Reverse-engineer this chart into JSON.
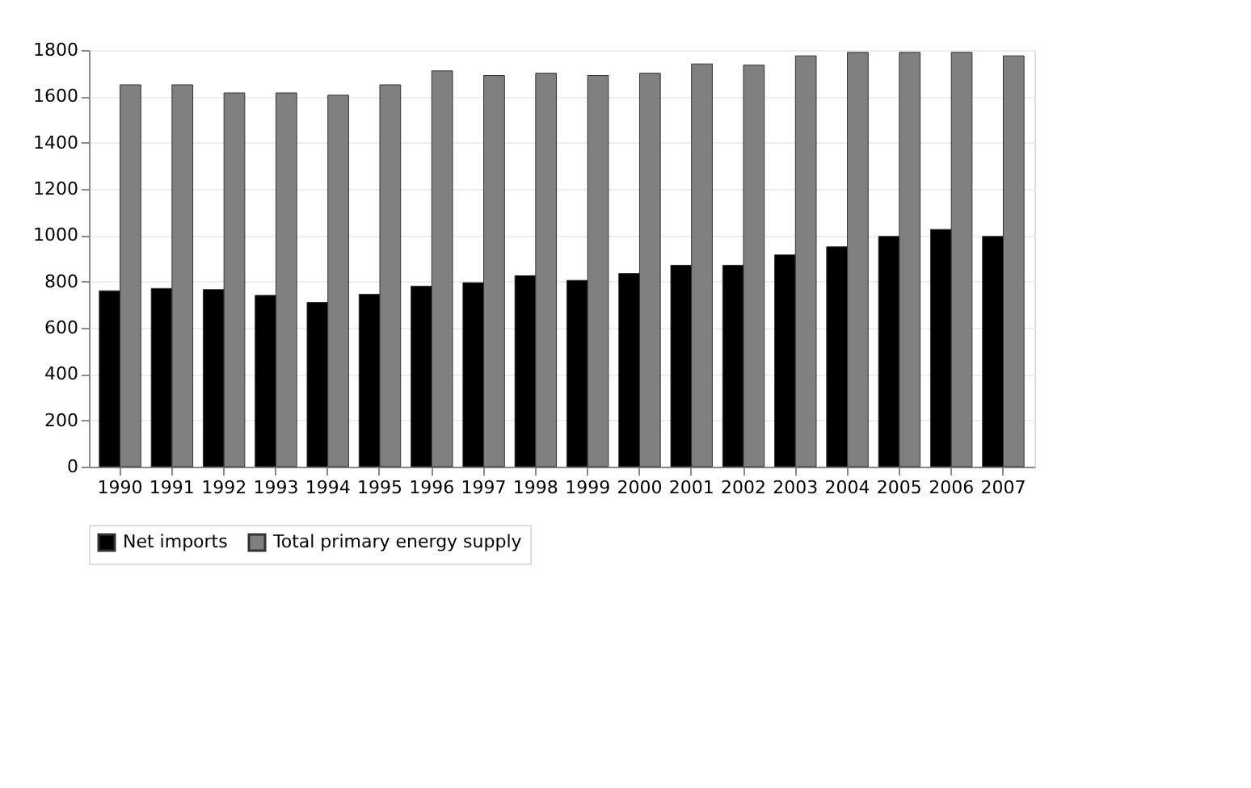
{
  "chart_data": {
    "type": "bar",
    "categories": [
      "1990",
      "1991",
      "1992",
      "1993",
      "1994",
      "1995",
      "1996",
      "1997",
      "1998",
      "1999",
      "2000",
      "2001",
      "2002",
      "2003",
      "2004",
      "2005",
      "2006",
      "2007"
    ],
    "series": [
      {
        "name": "Net imports",
        "color": "#000000",
        "values": [
          760,
          770,
          765,
          740,
          710,
          745,
          780,
          795,
          825,
          805,
          835,
          870,
          870,
          915,
          950,
          995,
          1025,
          995
        ]
      },
      {
        "name": "Total primary energy supply",
        "color": "#808080",
        "values": [
          1650,
          1650,
          1615,
          1615,
          1605,
          1650,
          1710,
          1690,
          1700,
          1690,
          1700,
          1740,
          1735,
          1775,
          1790,
          1790,
          1790,
          1775
        ]
      }
    ],
    "ylim": [
      0,
      1800
    ],
    "yticks": [
      0,
      200,
      400,
      600,
      800,
      1000,
      1200,
      1400,
      1600,
      1800
    ],
    "grid": "y",
    "legend": "bottom"
  }
}
